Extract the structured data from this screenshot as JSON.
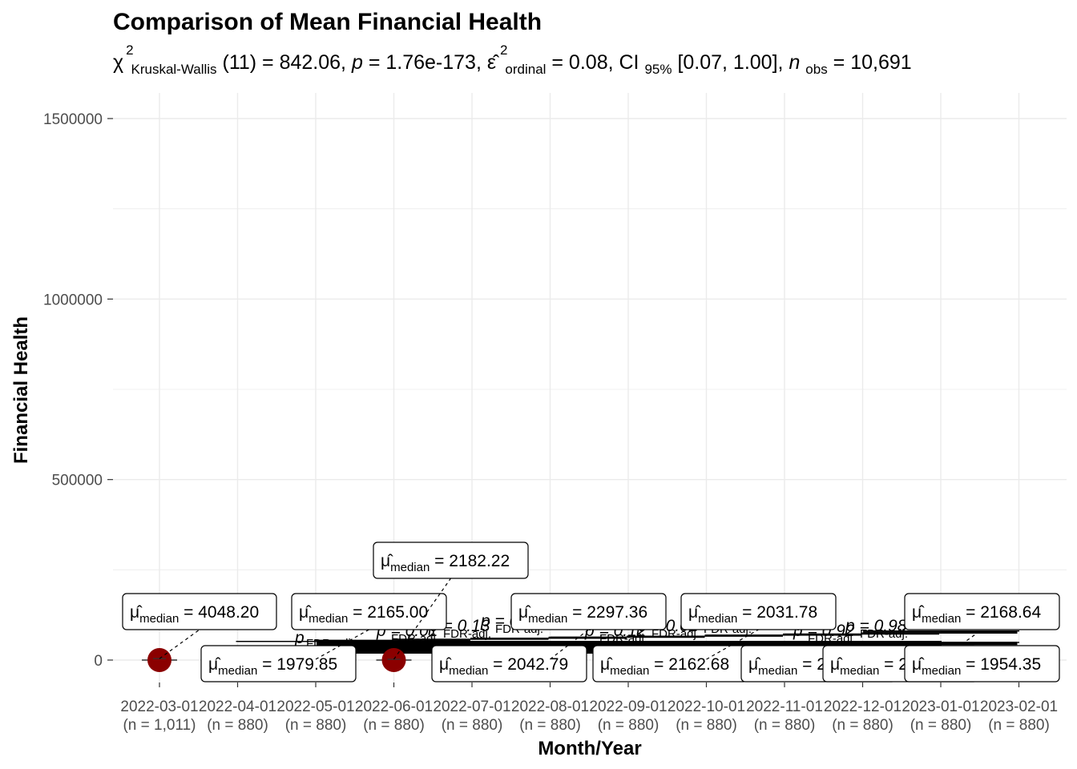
{
  "chart_data": {
    "type": "scatter",
    "title": "Comparison of Mean Financial Health",
    "subtitle": {
      "chi_symbol": "χ",
      "chi_sup": "2",
      "chi_sub": "Kruskal-Wallis",
      "stat_part": "(11) = 842.06, ",
      "p_symbol": "p",
      "p_part": " = 1.76e-173, ",
      "eps_symbol": "ε̂",
      "eps_sup": "2",
      "eps_sub": "ordinal",
      "eps_part": " = 0.08, CI",
      "ci_sub": "95%",
      "ci_part": " [0.07, 1.00], ",
      "n_symbol": "n",
      "n_sub": "obs",
      "n_part": " = 10,691"
    },
    "xlabel": "Month/Year",
    "ylabel": "Financial Health",
    "ylim": [
      -50000,
      1570000
    ],
    "yticks": [
      0,
      500000,
      1000000,
      1500000
    ],
    "ytick_labels": [
      "0",
      "500000",
      "1000000",
      "1500000"
    ],
    "grid": true,
    "categories": [
      "2022-03-01",
      "2022-04-01",
      "2022-05-01",
      "2022-06-01",
      "2022-07-01",
      "2022-08-01",
      "2022-09-01",
      "2022-10-01",
      "2022-11-01",
      "2022-12-01",
      "2023-01-01",
      "2023-02-01"
    ],
    "n_labels": [
      "(n = 1,011)",
      "(n = 880)",
      "(n = 880)",
      "(n = 880)",
      "(n = 880)",
      "(n = 880)",
      "(n = 880)",
      "(n = 880)",
      "(n = 880)",
      "(n = 880)",
      "(n = 880)",
      "(n = 880)"
    ],
    "median_symbol": "μ̂",
    "median_sub": "median",
    "medians": [
      "4048.20",
      "1979.85",
      "2165.00",
      "2182.22",
      "2042.79",
      "2297.36",
      "2162.68",
      "2031.78",
      "2033.84",
      "2005.67",
      "2168.64",
      "1954.35"
    ],
    "median_values": [
      4048.2,
      1979.85,
      2165.0,
      2182.22,
      2042.79,
      2297.36,
      2162.68,
      2031.78,
      2033.84,
      2005.67,
      2168.64,
      1954.35
    ],
    "outliers": [
      {
        "category": "2022-03-01",
        "y": 0
      },
      {
        "category": "2022-06-01",
        "y": 0
      }
    ],
    "pairwise_label_prefix": "p",
    "pairwise_label_sub": "FDR-adj.",
    "pairwise_values": [
      "0.01",
      "0.13",
      "0.07",
      "0.09",
      "0.12",
      "0.02",
      "0.13",
      "0.01",
      "0.92",
      "0.98"
    ],
    "colors": {
      "point": "#8b0000",
      "grid": "#ebebeb",
      "tick_text": "#4d4d4d",
      "bracket": "#000000"
    }
  }
}
